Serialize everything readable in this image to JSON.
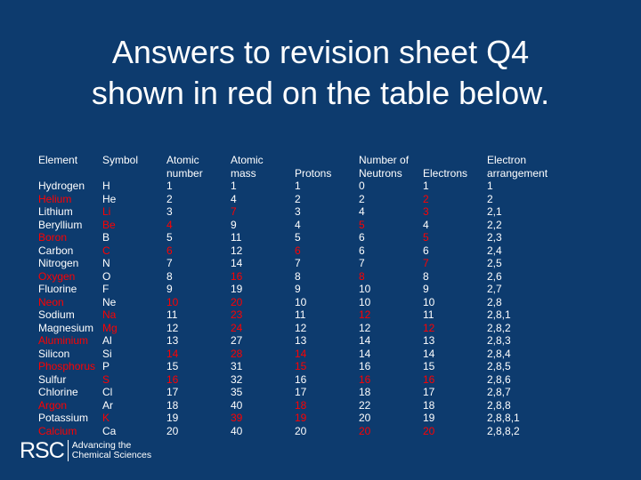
{
  "title_line1": "Answers to revision sheet Q4",
  "title_line2": "shown in red on the table below.",
  "columns": [
    {
      "key": "element",
      "header": [
        "Element"
      ],
      "cells": [
        [
          "Hydrogen",
          0
        ],
        [
          "Helium",
          1
        ],
        [
          "Lithium",
          0
        ],
        [
          "Beryllium",
          0
        ],
        [
          "Boron",
          1
        ],
        [
          "Carbon",
          0
        ],
        [
          "Nitrogen",
          0
        ],
        [
          "Oxygen",
          1
        ],
        [
          "Fluorine",
          0
        ],
        [
          "Neon",
          1
        ],
        [
          "Sodium",
          0
        ],
        [
          "Magnesium",
          0
        ],
        [
          "Aluminium",
          1
        ],
        [
          "Silicon",
          0
        ],
        [
          "Phosphorus",
          1
        ],
        [
          "Sulfur",
          0
        ],
        [
          "Chlorine",
          0
        ],
        [
          "Argon",
          1
        ],
        [
          "Potassium",
          0
        ],
        [
          "Calcium",
          1
        ]
      ]
    },
    {
      "key": "symbol",
      "header": [
        "Symbol"
      ],
      "cells": [
        [
          "H",
          0
        ],
        [
          "He",
          0
        ],
        [
          "Li",
          1
        ],
        [
          "Be",
          1
        ],
        [
          "B",
          0
        ],
        [
          "C",
          1
        ],
        [
          "N",
          0
        ],
        [
          "O",
          0
        ],
        [
          "F",
          0
        ],
        [
          "Ne",
          0
        ],
        [
          "Na",
          1
        ],
        [
          "Mg",
          1
        ],
        [
          "Al",
          0
        ],
        [
          "Si",
          0
        ],
        [
          "P",
          0
        ],
        [
          "S",
          1
        ],
        [
          "Cl",
          0
        ],
        [
          "Ar",
          0
        ],
        [
          "K",
          1
        ],
        [
          "Ca",
          0
        ]
      ]
    },
    {
      "key": "atomic_number",
      "header": [
        "Atomic",
        "number"
      ],
      "cells": [
        [
          "1",
          0
        ],
        [
          "2",
          0
        ],
        [
          "3",
          0
        ],
        [
          "4",
          1
        ],
        [
          "5",
          0
        ],
        [
          "6",
          1
        ],
        [
          "7",
          0
        ],
        [
          "8",
          0
        ],
        [
          "9",
          0
        ],
        [
          "10",
          1
        ],
        [
          "11",
          0
        ],
        [
          "12",
          0
        ],
        [
          "13",
          0
        ],
        [
          "14",
          1
        ],
        [
          "15",
          0
        ],
        [
          "16",
          1
        ],
        [
          "17",
          0
        ],
        [
          "18",
          0
        ],
        [
          "19",
          0
        ],
        [
          "20",
          0
        ]
      ]
    },
    {
      "key": "atomic_mass",
      "header": [
        "Atomic",
        "mass"
      ],
      "cells": [
        [
          "1",
          0
        ],
        [
          "4",
          0
        ],
        [
          "7",
          1
        ],
        [
          "9",
          0
        ],
        [
          "11",
          0
        ],
        [
          "12",
          0
        ],
        [
          "14",
          0
        ],
        [
          "16",
          1
        ],
        [
          "19",
          0
        ],
        [
          "20",
          1
        ],
        [
          "23",
          1
        ],
        [
          "24",
          1
        ],
        [
          "27",
          0
        ],
        [
          "28",
          1
        ],
        [
          "31",
          0
        ],
        [
          "32",
          0
        ],
        [
          "35",
          0
        ],
        [
          "40",
          0
        ],
        [
          "39",
          1
        ],
        [
          "40",
          0
        ]
      ]
    },
    {
      "key": "protons",
      "header": [
        "",
        "Protons"
      ],
      "cells": [
        [
          "1",
          0
        ],
        [
          "2",
          0
        ],
        [
          "3",
          0
        ],
        [
          "4",
          0
        ],
        [
          "5",
          0
        ],
        [
          "6",
          1
        ],
        [
          "7",
          0
        ],
        [
          "8",
          0
        ],
        [
          "9",
          0
        ],
        [
          "10",
          0
        ],
        [
          "11",
          0
        ],
        [
          "12",
          0
        ],
        [
          "13",
          0
        ],
        [
          "14",
          1
        ],
        [
          "15",
          1
        ],
        [
          "16",
          0
        ],
        [
          "17",
          0
        ],
        [
          "18",
          1
        ],
        [
          "19",
          1
        ],
        [
          "20",
          0
        ]
      ]
    },
    {
      "key": "neutrons",
      "header": [
        "Number of",
        "Neutrons"
      ],
      "cells": [
        [
          "0",
          0
        ],
        [
          "2",
          0
        ],
        [
          "4",
          0
        ],
        [
          "5",
          1
        ],
        [
          "6",
          0
        ],
        [
          "6",
          0
        ],
        [
          "7",
          0
        ],
        [
          "8",
          1
        ],
        [
          "10",
          0
        ],
        [
          "10",
          0
        ],
        [
          "12",
          1
        ],
        [
          "12",
          0
        ],
        [
          "14",
          0
        ],
        [
          "14",
          0
        ],
        [
          "16",
          0
        ],
        [
          "16",
          1
        ],
        [
          "18",
          0
        ],
        [
          "22",
          0
        ],
        [
          "20",
          0
        ],
        [
          "20",
          1
        ]
      ]
    },
    {
      "key": "electrons",
      "header": [
        "",
        "Electrons"
      ],
      "cells": [
        [
          "1",
          0
        ],
        [
          "2",
          1
        ],
        [
          "3",
          1
        ],
        [
          "4",
          0
        ],
        [
          "5",
          1
        ],
        [
          "6",
          0
        ],
        [
          "7",
          1
        ],
        [
          "8",
          0
        ],
        [
          "9",
          0
        ],
        [
          "10",
          0
        ],
        [
          "11",
          0
        ],
        [
          "12",
          1
        ],
        [
          "13",
          0
        ],
        [
          "14",
          0
        ],
        [
          "15",
          0
        ],
        [
          "16",
          1
        ],
        [
          "17",
          0
        ],
        [
          "18",
          0
        ],
        [
          "19",
          0
        ],
        [
          "20",
          1
        ]
      ]
    },
    {
      "key": "arrangement",
      "header": [
        "Electron",
        "arrangement"
      ],
      "cells": [
        [
          "1",
          0
        ],
        [
          "2",
          0
        ],
        [
          "2,1",
          0
        ],
        [
          "2,2",
          0
        ],
        [
          "2,3",
          0
        ],
        [
          "2,4",
          0
        ],
        [
          "2,5",
          0
        ],
        [
          "2,6",
          0
        ],
        [
          "2,7",
          0
        ],
        [
          "2,8",
          0
        ],
        [
          "2,8,1",
          0
        ],
        [
          "2,8,2",
          0
        ],
        [
          "2,8,3",
          0
        ],
        [
          "2,8,4",
          0
        ],
        [
          "2,8,5",
          0
        ],
        [
          "2,8,6",
          0
        ],
        [
          "2,8,7",
          0
        ],
        [
          "2,8,8",
          0
        ],
        [
          "2,8,8,1",
          0
        ],
        [
          "2,8,8,2",
          0
        ]
      ]
    }
  ],
  "logo": {
    "rsc": "RSC",
    "tag_line1": "Advancing the",
    "tag_line2": "Chemical Sciences"
  },
  "colors": {
    "background": "#0d3b6e",
    "text": "#ffffff",
    "answer": "#ff0000"
  }
}
